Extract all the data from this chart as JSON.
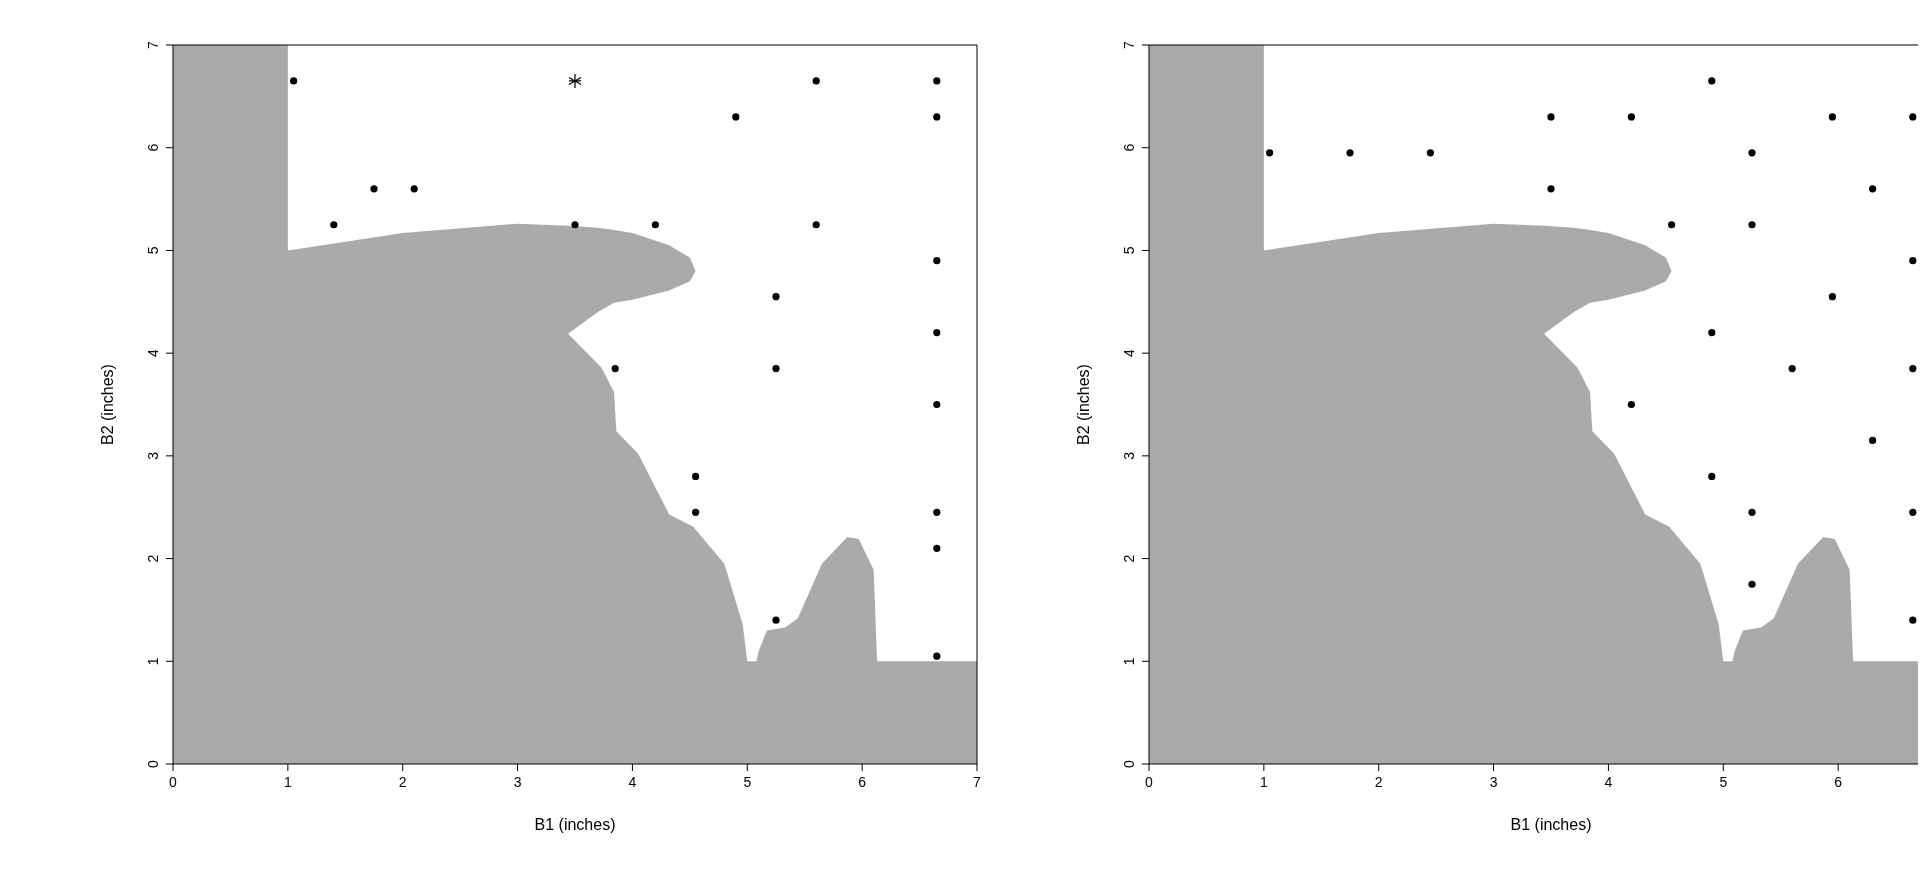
{
  "chart_data": [
    {
      "type": "scatter",
      "xlabel": "B1 (inches)",
      "ylabel": "B2 (inches)",
      "xlim": [
        0,
        7
      ],
      "ylim": [
        0,
        7
      ],
      "xticks": [
        0,
        1,
        2,
        3,
        4,
        5,
        6,
        7
      ],
      "yticks": [
        0,
        1,
        2,
        3,
        4,
        5,
        6,
        7
      ],
      "marker": "circle",
      "series": [
        {
          "type": "area",
          "color": "#aaaaaa",
          "marker": "none",
          "x": [
            0,
            1,
            1,
            2,
            3,
            3.44,
            3.7,
            3.84,
            4.0,
            4.32,
            4.5,
            4.55,
            4.5,
            4.32,
            4.0,
            3.84,
            3.7,
            3.44,
            3.73,
            3.84,
            3.86,
            4.05,
            4.32,
            4.53,
            4.8,
            4.96,
            5.0,
            5.08,
            5.1,
            5.17,
            5.33,
            5.44,
            5.65,
            5.87,
            5.97,
            6.1,
            6.13,
            7
          ],
          "values": [
            7,
            7,
            5.0,
            5.17,
            5.26,
            5.24,
            5.22,
            5.2,
            5.17,
            5.05,
            4.93,
            4.8,
            4.7,
            4.61,
            4.52,
            4.49,
            4.4,
            4.19,
            3.86,
            3.62,
            3.24,
            3.02,
            2.43,
            2.31,
            1.95,
            1.36,
            1.0,
            1.0,
            1.1,
            1.3,
            1.33,
            1.42,
            1.95,
            2.21,
            2.19,
            1.89,
            1.0,
            1.0
          ]
        },
        {
          "color": "#000000",
          "x": [
            1.05,
            4.9,
            5.6,
            6.65,
            6.65,
            1.75,
            2.1,
            1.4,
            3.5,
            4.2,
            5.6,
            6.65,
            5.25,
            6.65,
            3.85,
            5.25,
            6.65,
            4.55,
            4.55,
            6.65,
            6.65,
            5.25,
            6.65
          ],
          "values": [
            6.65,
            6.3,
            6.65,
            6.65,
            6.3,
            5.6,
            5.6,
            5.25,
            5.25,
            5.25,
            5.25,
            4.9,
            4.55,
            4.2,
            3.85,
            3.85,
            3.5,
            2.8,
            2.45,
            2.45,
            2.1,
            1.4,
            1.05
          ]
        },
        {
          "color": "#000000",
          "marker": "cross",
          "x": [
            3.5
          ],
          "values": [
            6.65
          ]
        }
      ]
    },
    {
      "type": "scatter",
      "xlabel": "B1 (inches)",
      "ylabel": "B2 (inches)",
      "xlim": [
        0,
        7
      ],
      "ylim": [
        0,
        7
      ],
      "xticks": [
        0,
        1,
        2,
        3,
        4,
        5,
        6
      ],
      "yticks": [
        0,
        1,
        2,
        3,
        4,
        5,
        6,
        7
      ],
      "marker": "circle",
      "series": [
        {
          "type": "area",
          "color": "#aaaaaa",
          "marker": "none",
          "x": [
            0,
            1,
            1,
            2,
            3,
            3.44,
            3.7,
            3.84,
            4.0,
            4.32,
            4.5,
            4.55,
            4.5,
            4.32,
            4.0,
            3.84,
            3.7,
            3.44,
            3.73,
            3.84,
            3.86,
            4.05,
            4.32,
            4.53,
            4.8,
            4.96,
            5.0,
            5.08,
            5.1,
            5.17,
            5.33,
            5.44,
            5.65,
            5.87,
            5.97,
            6.1,
            6.13,
            7
          ],
          "values": [
            7,
            7,
            5.0,
            5.17,
            5.26,
            5.24,
            5.22,
            5.2,
            5.17,
            5.05,
            4.93,
            4.8,
            4.7,
            4.61,
            4.52,
            4.49,
            4.4,
            4.19,
            3.86,
            3.62,
            3.24,
            3.02,
            2.43,
            2.31,
            1.95,
            1.36,
            1.0,
            1.0,
            1.1,
            1.3,
            1.33,
            1.42,
            1.95,
            2.21,
            2.19,
            1.89,
            1.0,
            1.0
          ]
        },
        {
          "color": "#000000",
          "x": [
            1.05,
            1.75,
            2.45,
            3.5,
            4.2,
            4.9,
            5.95,
            6.65,
            3.5,
            5.25,
            6.3,
            4.55,
            5.25,
            6.65,
            5.95,
            4.9,
            5.6,
            6.65,
            4.2,
            6.3,
            4.9,
            5.25,
            6.65,
            5.25,
            6.65
          ],
          "values": [
            5.95,
            5.95,
            5.95,
            6.3,
            6.3,
            6.65,
            6.3,
            6.3,
            5.6,
            5.95,
            5.6,
            5.25,
            5.25,
            4.9,
            4.55,
            4.2,
            3.85,
            3.85,
            3.5,
            3.15,
            2.8,
            2.45,
            2.45,
            1.75,
            1.4
          ]
        }
      ]
    }
  ]
}
